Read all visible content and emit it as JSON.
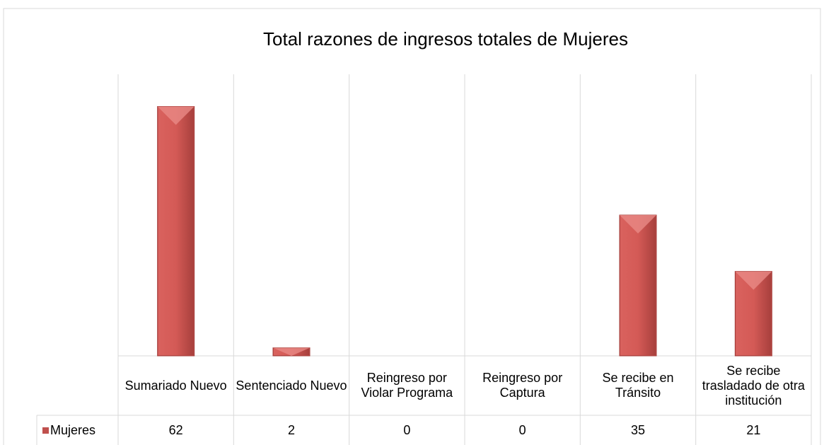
{
  "chart_data": {
    "type": "bar",
    "title": "Total razones de ingresos totales de Mujeres",
    "categories": [
      "Sumariado Nuevo",
      "Sentenciado Nuevo",
      "Reingreso por Violar Programa",
      "Reingreso por Captura",
      "Se recibe en Tránsito",
      "Se recibe trasladado de otra institución"
    ],
    "series": [
      {
        "name": "Mujeres",
        "color": "#c0504d",
        "values": [
          62,
          2,
          0,
          0,
          35,
          21
        ]
      }
    ],
    "ylim": [
      0,
      70
    ],
    "grid": true
  }
}
